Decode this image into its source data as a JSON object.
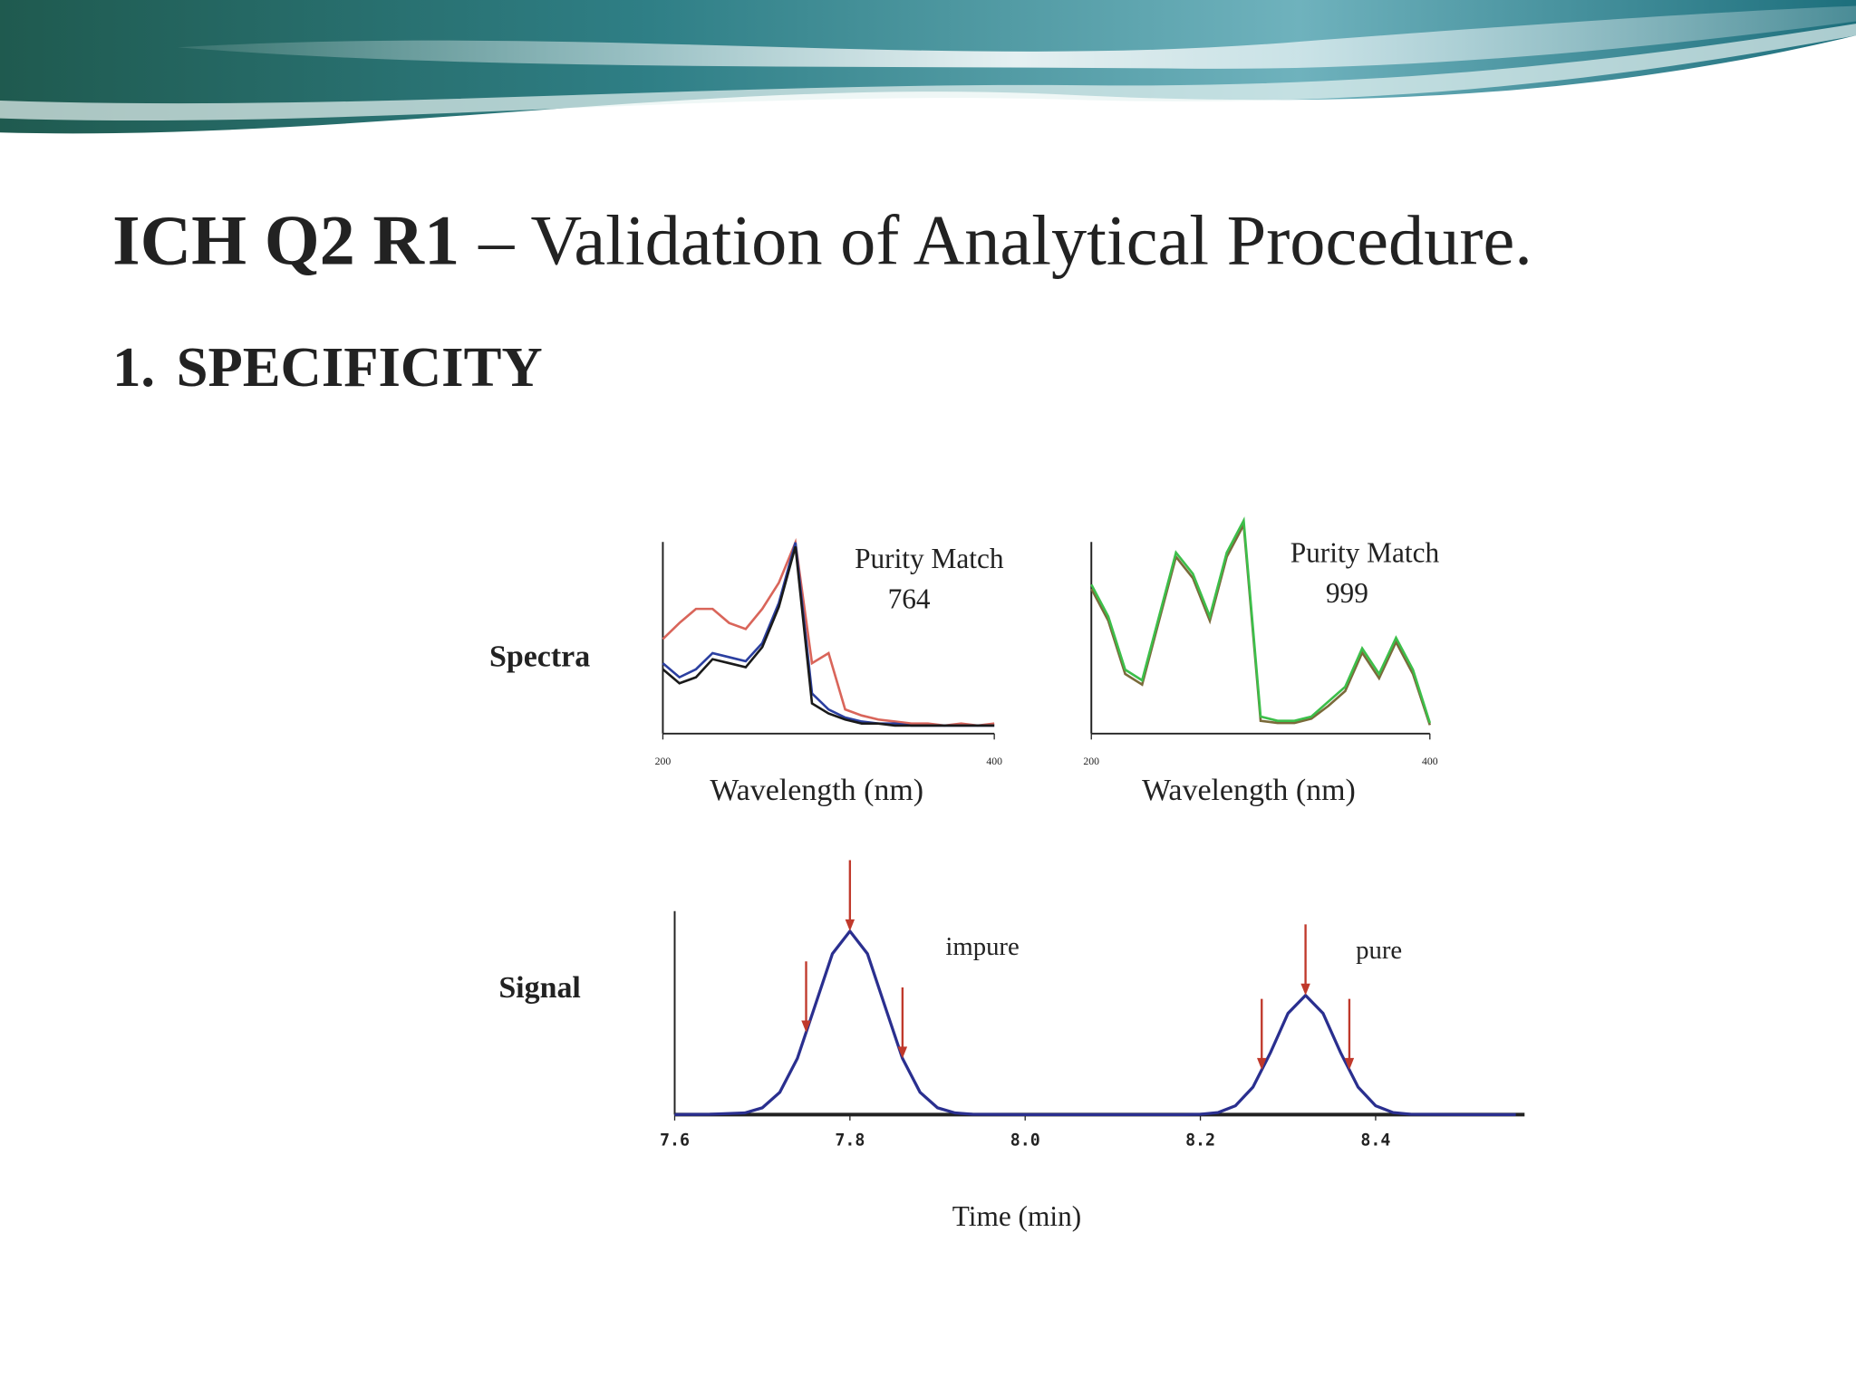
{
  "header": {
    "title_bold": "ICH Q2 R1",
    "title_rest": "– Validation of Analytical Procedure.",
    "section_number": "1.",
    "section_title": "SPECIFICITY"
  },
  "chart_data": [
    {
      "type": "line",
      "row_label": "Spectra",
      "x_label": "Wavelength (nm)",
      "annotation": "Purity Match",
      "purity_match": 764,
      "x": [
        200,
        210,
        220,
        230,
        240,
        250,
        260,
        270,
        280,
        290,
        300,
        310,
        320,
        330,
        340,
        350,
        360,
        370,
        380,
        390,
        400
      ],
      "xlim": [
        200,
        400
      ],
      "xticks": [
        200,
        400
      ],
      "ylim": [
        0,
        1
      ],
      "series": [
        {
          "color": "#d9655a",
          "values": [
            0.47,
            0.55,
            0.62,
            0.62,
            0.55,
            0.52,
            0.62,
            0.75,
            0.95,
            0.35,
            0.4,
            0.12,
            0.09,
            0.07,
            0.06,
            0.05,
            0.05,
            0.04,
            0.05,
            0.04,
            0.05
          ]
        },
        {
          "color": "#2b3fa0",
          "values": [
            0.35,
            0.28,
            0.32,
            0.4,
            0.38,
            0.36,
            0.45,
            0.65,
            0.95,
            0.2,
            0.12,
            0.08,
            0.06,
            0.05,
            0.05,
            0.04,
            0.04,
            0.04,
            0.04,
            0.04,
            0.04
          ]
        },
        {
          "color": "#1a1a1a",
          "values": [
            0.32,
            0.25,
            0.28,
            0.37,
            0.35,
            0.33,
            0.43,
            0.63,
            0.93,
            0.15,
            0.1,
            0.07,
            0.05,
            0.05,
            0.04,
            0.04,
            0.04,
            0.04,
            0.04,
            0.04,
            0.04
          ]
        }
      ]
    },
    {
      "type": "line",
      "x_label": "Wavelength (nm)",
      "annotation": "Purity Match",
      "purity_match": 999,
      "x": [
        200,
        210,
        220,
        230,
        240,
        250,
        260,
        270,
        280,
        290,
        300,
        310,
        320,
        330,
        340,
        350,
        360,
        370,
        380,
        390,
        400
      ],
      "xlim": [
        200,
        400
      ],
      "xticks": [
        200,
        400
      ],
      "ylim": [
        0,
        1
      ],
      "series": [
        {
          "color": "#7a6a3a",
          "values": [
            0.68,
            0.53,
            0.28,
            0.23,
            0.53,
            0.83,
            0.73,
            0.53,
            0.83,
            0.98,
            0.06,
            0.05,
            0.05,
            0.07,
            0.13,
            0.2,
            0.38,
            0.26,
            0.43,
            0.28,
            0.04
          ]
        },
        {
          "color": "#3cbf4a",
          "values": [
            0.7,
            0.55,
            0.3,
            0.25,
            0.55,
            0.85,
            0.75,
            0.55,
            0.85,
            1.0,
            0.08,
            0.06,
            0.06,
            0.08,
            0.15,
            0.22,
            0.4,
            0.28,
            0.45,
            0.3,
            0.05
          ]
        }
      ]
    },
    {
      "type": "line",
      "row_label": "Signal",
      "x_label": "Time (min)",
      "annotations": [
        "impure",
        "pure"
      ],
      "x": [
        7.6,
        7.64,
        7.68,
        7.7,
        7.72,
        7.74,
        7.76,
        7.78,
        7.8,
        7.82,
        7.84,
        7.86,
        7.88,
        7.9,
        7.92,
        7.94,
        8.0,
        8.1,
        8.18,
        8.2,
        8.22,
        8.24,
        8.26,
        8.28,
        8.3,
        8.32,
        8.34,
        8.36,
        8.38,
        8.4,
        8.42,
        8.44,
        8.5,
        8.56
      ],
      "xlim": [
        7.6,
        8.57
      ],
      "xticks": [
        7.6,
        7.8,
        {
          "value": 8,
          "label": "8.0"
        },
        8.2,
        8.4
      ],
      "ylim": [
        0,
        1
      ],
      "series": [
        {
          "color": "#2a2f8f",
          "values": [
            0,
            0.002,
            0.009,
            0.037,
            0.122,
            0.306,
            0.591,
            0.877,
            1,
            0.877,
            0.591,
            0.306,
            0.122,
            0.037,
            0.009,
            0.002,
            0,
            0,
            0,
            0.002,
            0.011,
            0.048,
            0.15,
            0.338,
            0.552,
            0.65,
            0.552,
            0.338,
            0.15,
            0.048,
            0.011,
            0.002,
            0,
            0
          ]
        }
      ],
      "arrows": {
        "color": "#c0392b",
        "x": [
          7.75,
          7.8,
          7.86,
          8.27,
          8.32,
          8.37
        ]
      }
    }
  ]
}
